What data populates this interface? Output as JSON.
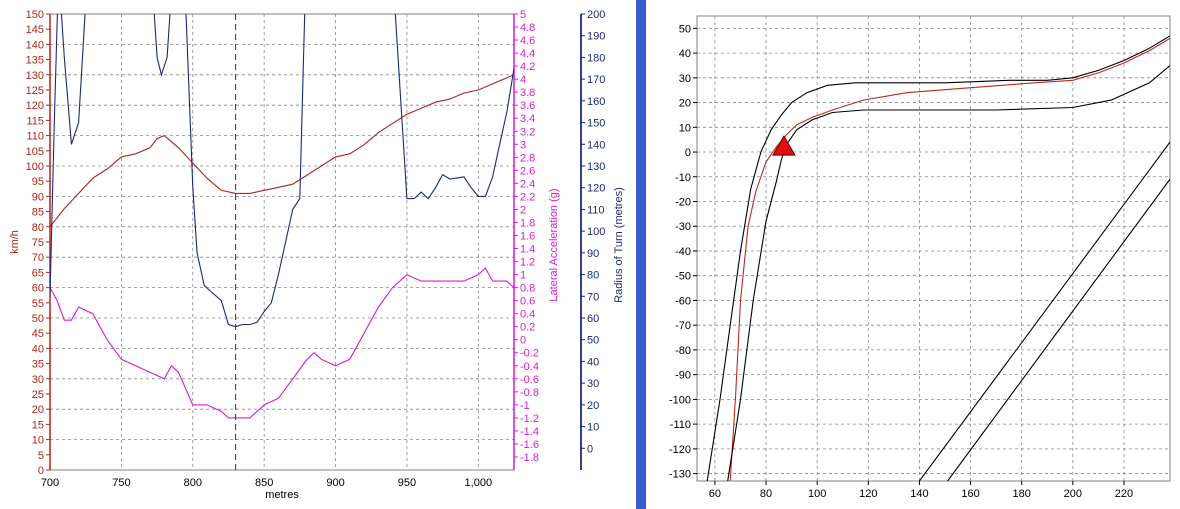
{
  "colors": {
    "speed": "#b02418",
    "lateral": "#d81ad8",
    "radius": "#1a2a7a",
    "divider": "#3a5ad0",
    "grid": "#888888",
    "track": "#000000",
    "racing_line": "#c0281c",
    "marker": "#e01010"
  },
  "chart_data": [
    {
      "type": "line",
      "name": "telemetry",
      "xlabel": "metres",
      "x_ticks": [
        "700",
        "750",
        "800",
        "850",
        "900",
        "950",
        "1,000"
      ],
      "xlim": [
        700,
        1025
      ],
      "cursor_x": 830,
      "axes": {
        "speed": {
          "label": "km/h",
          "range": [
            0,
            150
          ],
          "ticks": [
            "0",
            "5",
            "10",
            "15",
            "20",
            "25",
            "30",
            "35",
            "40",
            "45",
            "50",
            "55",
            "60",
            "65",
            "70",
            "75",
            "80",
            "85",
            "90",
            "95",
            "100",
            "105",
            "110",
            "115",
            "120",
            "125",
            "130",
            "135",
            "140",
            "145",
            "150"
          ]
        },
        "lateral": {
          "label": "Lateral Acceleration (g)",
          "range": [
            -2.0,
            5.0
          ],
          "ticks": [
            "-1.8",
            "-1.6",
            "-1.4",
            "-1.2",
            "-1",
            "-0.8",
            "-0.6",
            "-0.4",
            "-0.2",
            "0",
            "0.2",
            "0.4",
            "0.6",
            "0.8",
            "1",
            "1.2",
            "1.4",
            "1.6",
            "1.8",
            "2",
            "2.2",
            "2.4",
            "2.6",
            "2.8",
            "3",
            "3.2",
            "3.4",
            "3.6",
            "3.8",
            "4",
            "4.2",
            "4.4",
            "4.6",
            "4.8",
            "5"
          ]
        },
        "radius": {
          "label": "Radius of Turn (metres)",
          "range": [
            -10,
            200
          ],
          "ticks": [
            "0",
            "10",
            "20",
            "30",
            "40",
            "50",
            "60",
            "70",
            "80",
            "90",
            "100",
            "110",
            "120",
            "130",
            "140",
            "150",
            "160",
            "170",
            "180",
            "190",
            "200"
          ]
        }
      },
      "series": [
        {
          "name": "speed",
          "axis": "speed",
          "x": [
            700,
            710,
            720,
            730,
            740,
            750,
            760,
            770,
            775,
            780,
            785,
            790,
            800,
            810,
            820,
            830,
            840,
            850,
            860,
            870,
            880,
            890,
            900,
            910,
            920,
            930,
            940,
            950,
            960,
            970,
            980,
            990,
            1000,
            1010,
            1020,
            1025
          ],
          "y": [
            80,
            86,
            91,
            96,
            99,
            103,
            104,
            106,
            109,
            110,
            108,
            106,
            101,
            96,
            92,
            91,
            91,
            92,
            93,
            94,
            97,
            100,
            103,
            104,
            107,
            111,
            114,
            117,
            119,
            121,
            122,
            124,
            125,
            127,
            129,
            130
          ]
        },
        {
          "name": "lateral",
          "axis": "lateral",
          "x": [
            700,
            705,
            710,
            715,
            720,
            730,
            740,
            750,
            760,
            770,
            780,
            785,
            790,
            800,
            810,
            820,
            825,
            830,
            835,
            840,
            850,
            860,
            870,
            880,
            885,
            890,
            900,
            910,
            920,
            930,
            940,
            950,
            960,
            970,
            980,
            990,
            1000,
            1005,
            1010,
            1020,
            1025
          ],
          "y": [
            0.8,
            0.6,
            0.3,
            0.3,
            0.5,
            0.4,
            0.0,
            -0.3,
            -0.4,
            -0.5,
            -0.6,
            -0.4,
            -0.5,
            -1.0,
            -1.0,
            -1.1,
            -1.2,
            -1.2,
            -1.2,
            -1.2,
            -1.0,
            -0.9,
            -0.6,
            -0.3,
            -0.2,
            -0.3,
            -0.4,
            -0.3,
            0.1,
            0.5,
            0.8,
            1.0,
            0.9,
            0.9,
            0.9,
            0.9,
            1.0,
            1.1,
            0.9,
            0.9,
            0.8
          ]
        },
        {
          "name": "radius",
          "axis": "radius",
          "x": [
            700,
            703,
            706,
            710,
            715,
            720,
            725,
            730,
            735,
            740,
            745,
            755,
            770,
            775,
            778,
            782,
            787,
            790,
            795,
            800,
            803,
            808,
            813,
            820,
            825,
            830,
            835,
            840,
            845,
            850,
            855,
            860,
            865,
            870,
            875,
            880,
            885,
            890,
            893,
            897,
            900,
            903,
            906,
            910,
            920,
            940,
            950,
            955,
            960,
            965,
            970,
            975,
            980,
            990,
            995,
            1000,
            1005,
            1010,
            1015,
            1020,
            1025
          ],
          "y": [
            70,
            150,
            220,
            180,
            140,
            150,
            205,
            240,
            240,
            240,
            240,
            240,
            230,
            180,
            172,
            180,
            230,
            240,
            205,
            120,
            90,
            75,
            72,
            68,
            57,
            56,
            57,
            57,
            58,
            63,
            67,
            80,
            95,
            110,
            115,
            240,
            240,
            220,
            208,
            212,
            240,
            240,
            240,
            220,
            220,
            220,
            115,
            115,
            118,
            115,
            120,
            126,
            124,
            125,
            120,
            116,
            116,
            125,
            140,
            155,
            175
          ]
        }
      ]
    },
    {
      "type": "line",
      "name": "track map",
      "x_ticks": [
        "60",
        "80",
        "100",
        "120",
        "140",
        "160",
        "180",
        "200",
        "220"
      ],
      "xlim": [
        53,
        238
      ],
      "y_ticks": [
        "50",
        "40",
        "30",
        "20",
        "10",
        "0",
        "-10",
        "-20",
        "-30",
        "-40",
        "-50",
        "-60",
        "-70",
        "-80",
        "-90",
        "-100",
        "-110",
        "-120",
        "-130"
      ],
      "ylim": [
        -133,
        55
      ],
      "grid": true,
      "marker": {
        "shape": "triangle",
        "x": 87,
        "y": 2
      },
      "series": [
        {
          "name": "track-edge-outer",
          "x": [
            57,
            62,
            66,
            70,
            74,
            78,
            82,
            86,
            90,
            96,
            104,
            115,
            130,
            150,
            175,
            190,
            200,
            210,
            220,
            230,
            238
          ],
          "y": [
            -133,
            -100,
            -70,
            -40,
            -15,
            0,
            9,
            15,
            20,
            24,
            27,
            28,
            28,
            28,
            29,
            29,
            30,
            33,
            37,
            42,
            47
          ]
        },
        {
          "name": "racing-line",
          "x": [
            66,
            68,
            70,
            73,
            76,
            80,
            84,
            88,
            92,
            98,
            106,
            118,
            135,
            160,
            185,
            200,
            210,
            220,
            230,
            238
          ],
          "y": [
            -133,
            -100,
            -60,
            -30,
            -16,
            -4,
            2,
            7,
            11,
            14,
            17,
            21,
            24,
            26,
            28,
            29,
            32,
            36,
            41,
            46
          ]
        },
        {
          "name": "track-edge-inner",
          "x": [
            65,
            70,
            75,
            80,
            84,
            86,
            88,
            92,
            98,
            106,
            118,
            140,
            170,
            200,
            215,
            230,
            238
          ],
          "y": [
            -133,
            -100,
            -60,
            -28,
            -12,
            -3,
            3,
            9,
            13,
            16,
            17,
            17,
            17,
            18,
            21,
            28,
            35
          ]
        },
        {
          "name": "track-straight-upper",
          "x": [
            140,
            238
          ],
          "y": [
            -133,
            4
          ]
        },
        {
          "name": "track-straight-lower",
          "x": [
            151,
            238
          ],
          "y": [
            -133,
            -11
          ]
        }
      ]
    }
  ]
}
